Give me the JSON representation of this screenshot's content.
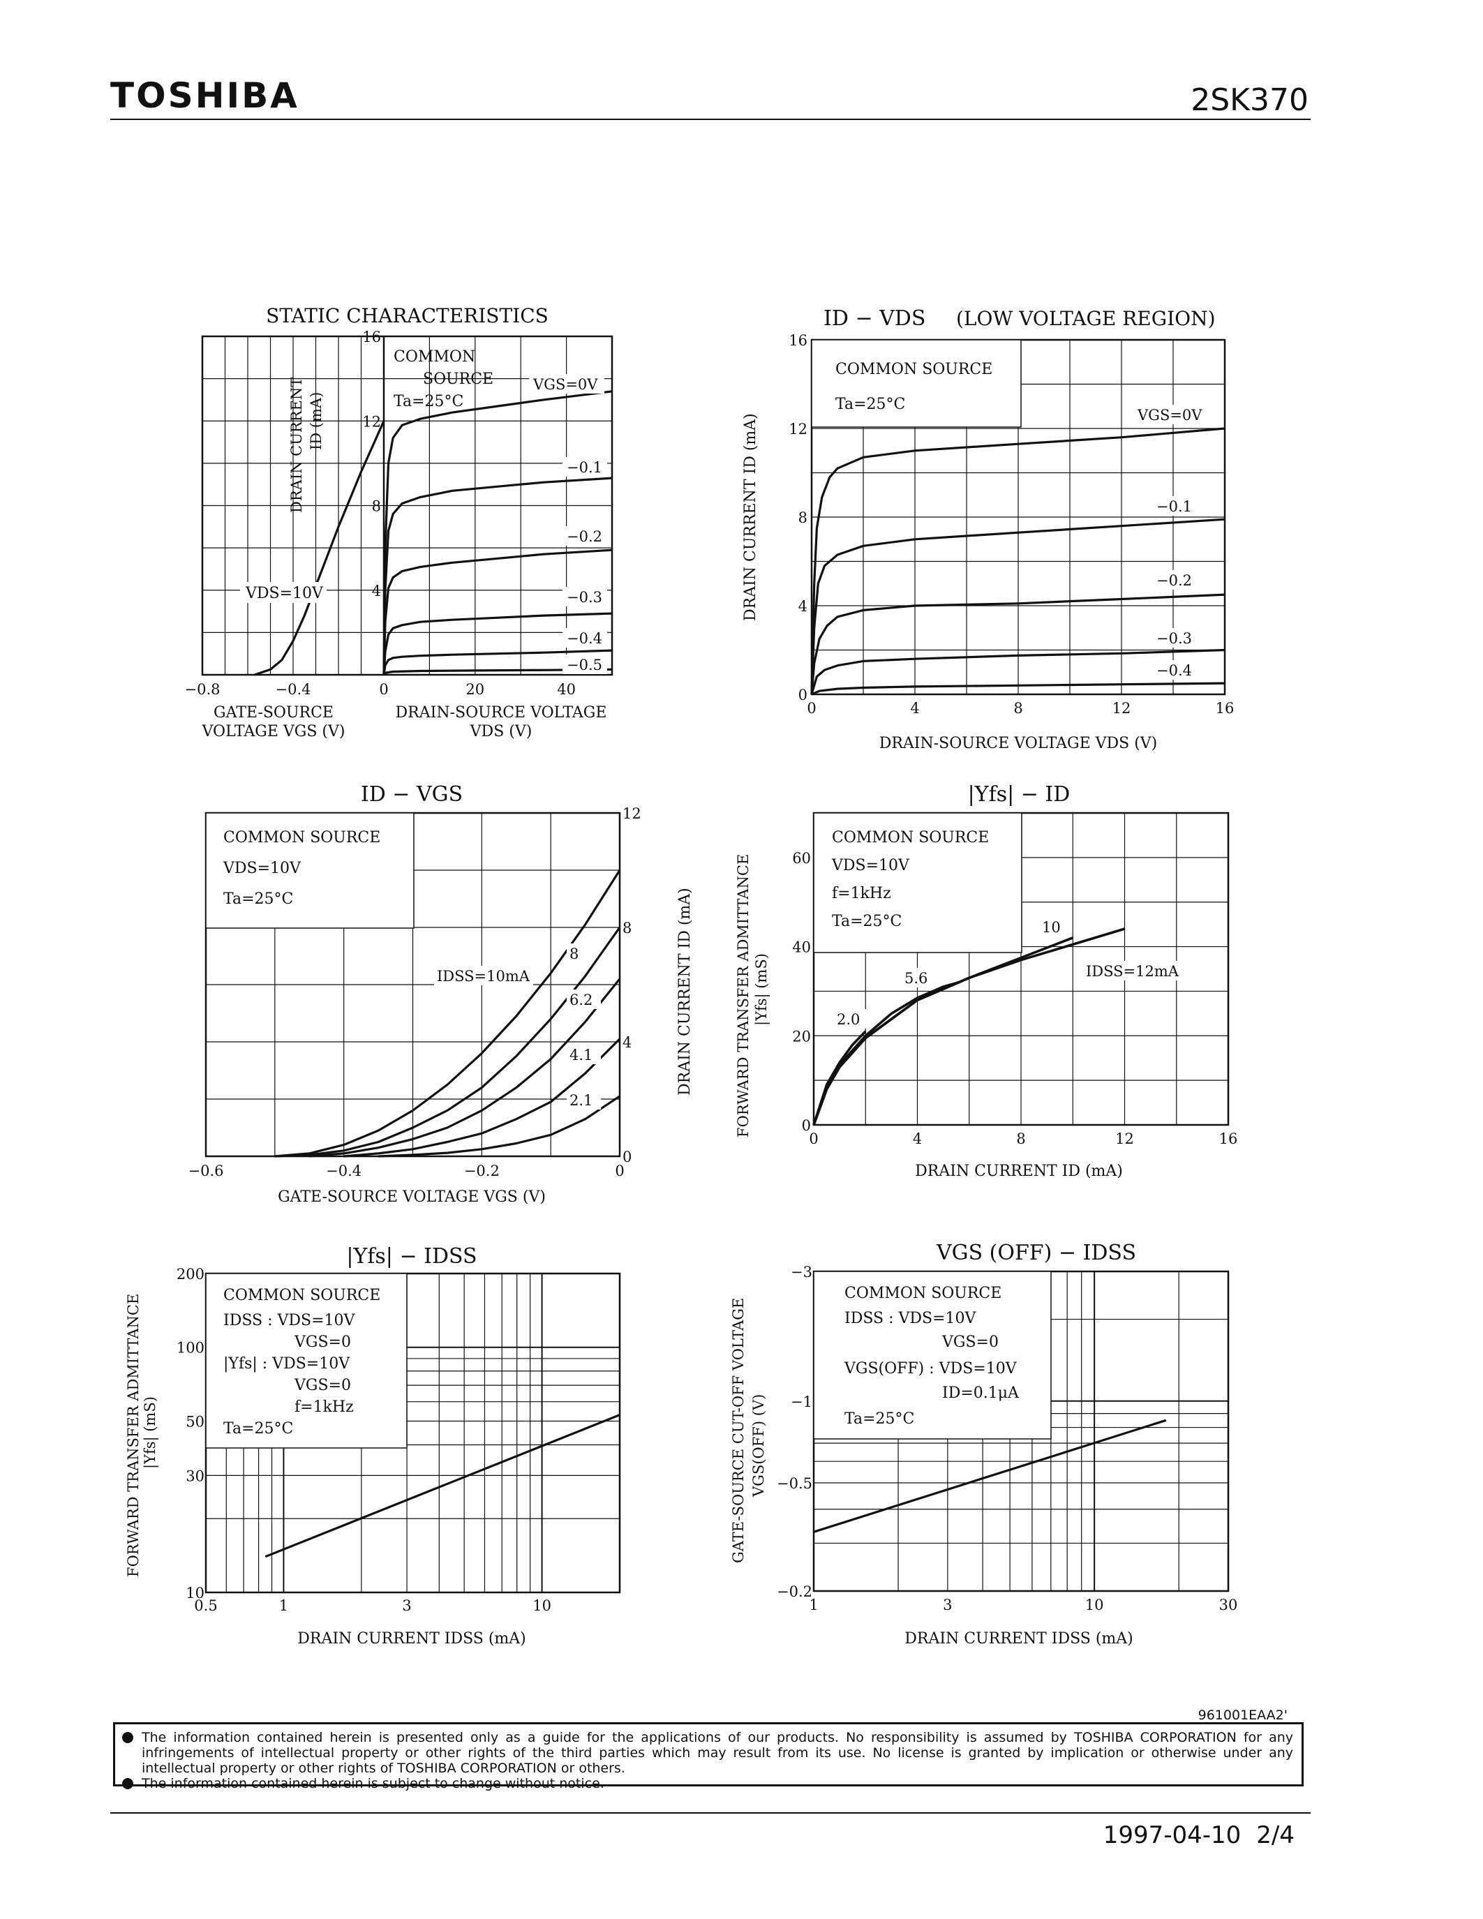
{
  "header": {
    "brand": "TOSHIBA",
    "part_number": "2SK370"
  },
  "chart_data": [
    {
      "id": "static",
      "type": "line",
      "title": "STATIC CHARACTERISTICS",
      "left_panel": {
        "xlabel": "GATE-SOURCE VOLTAGE VGS (V)",
        "xlim": [
          -0.8,
          0
        ],
        "xticks": [
          -0.8,
          -0.4,
          0
        ],
        "xtick_labels": [
          "−0.8",
          "−0.4",
          "0"
        ],
        "ylabel": "DRAIN CURRENT ID (mA)",
        "ylim": [
          0,
          16
        ],
        "yticks": [
          4,
          8,
          12,
          16
        ],
        "condition": "VDS=10V",
        "series": [
          {
            "name": "VDS=10V",
            "x": [
              -0.57,
              -0.5,
              -0.45,
              -0.4,
              -0.35,
              -0.3,
              -0.25,
              -0.2,
              -0.15,
              -0.1,
              -0.05,
              0
            ],
            "y": [
              0,
              0.25,
              0.7,
              1.6,
              2.8,
              4.2,
              5.6,
              7.0,
              8.3,
              9.6,
              10.8,
              12.0
            ]
          }
        ]
      },
      "right_panel": {
        "xlabel": "DRAIN-SOURCE VOLTAGE VDS (V)",
        "xlim": [
          0,
          50
        ],
        "xticks": [
          0,
          20,
          40
        ],
        "ylim": [
          0,
          16
        ],
        "annotation": [
          "COMMON",
          "SOURCE",
          "Ta=25°C"
        ],
        "series": [
          {
            "name": "VGS=0V",
            "label": "VGS=0V",
            "x": [
              0,
              0.3,
              1,
              2,
              4,
              8,
              15,
              25,
              35,
              50
            ],
            "y": [
              0,
              6,
              10,
              11.2,
              11.8,
              12.1,
              12.4,
              12.7,
              13.0,
              13.4
            ]
          },
          {
            "name": "−0.1",
            "label": "−0.1",
            "x": [
              0,
              0.3,
              1,
              2,
              4,
              8,
              15,
              25,
              35,
              50
            ],
            "y": [
              0,
              4,
              6.8,
              7.6,
              8.1,
              8.4,
              8.7,
              8.9,
              9.1,
              9.3
            ]
          },
          {
            "name": "−0.2",
            "label": "−0.2",
            "x": [
              0,
              0.3,
              1,
              2,
              4,
              8,
              15,
              25,
              35,
              50
            ],
            "y": [
              0,
              2.5,
              4.1,
              4.6,
              4.9,
              5.1,
              5.3,
              5.5,
              5.7,
              5.9
            ]
          },
          {
            "name": "−0.3",
            "label": "−0.3",
            "x": [
              0,
              0.3,
              1,
              2,
              4,
              8,
              15,
              25,
              35,
              50
            ],
            "y": [
              0,
              1.1,
              1.9,
              2.2,
              2.35,
              2.5,
              2.6,
              2.7,
              2.8,
              2.9
            ]
          },
          {
            "name": "−0.4",
            "label": "−0.4",
            "x": [
              0,
              0.3,
              1,
              2,
              4,
              8,
              15,
              25,
              35,
              50
            ],
            "y": [
              0,
              0.45,
              0.7,
              0.8,
              0.85,
              0.9,
              0.95,
              1.0,
              1.05,
              1.15
            ]
          },
          {
            "name": "−0.5",
            "label": "−0.5",
            "x": [
              0,
              0.5,
              2,
              8,
              20,
              35,
              50
            ],
            "y": [
              0,
              0.1,
              0.15,
              0.18,
              0.2,
              0.22,
              0.25
            ]
          }
        ]
      }
    },
    {
      "id": "id-vds",
      "type": "line",
      "title": "ID − VDS",
      "subtitle": "(LOW VOLTAGE REGION)",
      "xlabel": "DRAIN-SOURCE VOLTAGE VDS (V)",
      "ylabel": "DRAIN CURRENT ID (mA)",
      "xlim": [
        0,
        16
      ],
      "ylim": [
        0,
        16
      ],
      "xticks": [
        0,
        4,
        8,
        12,
        16
      ],
      "yticks": [
        0,
        4,
        8,
        12,
        16
      ],
      "annotation": [
        "COMMON SOURCE",
        "Ta=25°C"
      ],
      "series": [
        {
          "name": "VGS=0V",
          "label": "VGS=0V",
          "x": [
            0,
            0.1,
            0.2,
            0.4,
            0.7,
            1,
            2,
            4,
            8,
            12,
            16
          ],
          "y": [
            0,
            5,
            7.5,
            8.9,
            9.8,
            10.2,
            10.7,
            11.0,
            11.3,
            11.6,
            12.0
          ]
        },
        {
          "name": "−0.1",
          "label": "−0.1",
          "x": [
            0,
            0.1,
            0.25,
            0.5,
            1,
            2,
            4,
            8,
            12,
            16
          ],
          "y": [
            0,
            3,
            5,
            5.8,
            6.3,
            6.7,
            7.0,
            7.3,
            7.6,
            7.9
          ]
        },
        {
          "name": "−0.2",
          "label": "−0.2",
          "x": [
            0,
            0.1,
            0.3,
            0.6,
            1,
            2,
            4,
            8,
            12,
            16
          ],
          "y": [
            0,
            1.4,
            2.5,
            3.1,
            3.5,
            3.8,
            4.0,
            4.1,
            4.3,
            4.5
          ]
        },
        {
          "name": "−0.3",
          "label": "−0.3",
          "x": [
            0,
            0.2,
            0.5,
            1,
            2,
            4,
            8,
            12,
            16
          ],
          "y": [
            0,
            0.8,
            1.1,
            1.3,
            1.5,
            1.6,
            1.75,
            1.85,
            2.0
          ]
        },
        {
          "name": "−0.4",
          "label": "−0.4",
          "x": [
            0,
            0.3,
            1,
            2,
            4,
            8,
            12,
            16
          ],
          "y": [
            0,
            0.15,
            0.25,
            0.3,
            0.35,
            0.4,
            0.45,
            0.5
          ]
        }
      ]
    },
    {
      "id": "id-vgs",
      "type": "line",
      "title": "ID − VGS",
      "xlabel": "GATE-SOURCE VOLTAGE VGS (V)",
      "ylabel": "DRAIN CURRENT ID (mA)",
      "xlim": [
        -0.6,
        0
      ],
      "ylim": [
        0,
        12
      ],
      "xticks": [
        -0.6,
        -0.4,
        -0.2,
        0
      ],
      "xtick_labels": [
        "−0.6",
        "−0.4",
        "−0.2",
        "0"
      ],
      "yticks": [
        0,
        4,
        8,
        12
      ],
      "annotation": [
        "COMMON SOURCE",
        "VDS=10V",
        "Ta=25°C"
      ],
      "series": [
        {
          "name": "IDSS=10mA",
          "label": "IDSS=10mA",
          "x": [
            -0.5,
            -0.45,
            -0.4,
            -0.35,
            -0.3,
            -0.25,
            -0.2,
            -0.15,
            -0.1,
            -0.05,
            0
          ],
          "y": [
            0,
            0.1,
            0.4,
            0.9,
            1.6,
            2.5,
            3.6,
            4.9,
            6.4,
            8.1,
            10.0
          ]
        },
        {
          "name": "8",
          "label": "8",
          "x": [
            -0.5,
            -0.45,
            -0.4,
            -0.35,
            -0.3,
            -0.25,
            -0.2,
            -0.15,
            -0.1,
            -0.05,
            0
          ],
          "y": [
            0,
            0.05,
            0.2,
            0.5,
            1.0,
            1.6,
            2.4,
            3.5,
            4.8,
            6.3,
            8.0
          ]
        },
        {
          "name": "6.2",
          "label": "6.2",
          "x": [
            -0.45,
            -0.4,
            -0.35,
            -0.3,
            -0.25,
            -0.2,
            -0.15,
            -0.1,
            -0.05,
            0
          ],
          "y": [
            0,
            0.1,
            0.3,
            0.6,
            1.0,
            1.6,
            2.4,
            3.4,
            4.7,
            6.2
          ]
        },
        {
          "name": "4.1",
          "label": "4.1",
          "x": [
            -0.4,
            -0.35,
            -0.3,
            -0.25,
            -0.2,
            -0.15,
            -0.1,
            -0.05,
            0
          ],
          "y": [
            0,
            0.1,
            0.25,
            0.5,
            0.8,
            1.3,
            1.9,
            2.9,
            4.1
          ]
        },
        {
          "name": "2.1",
          "label": "2.1",
          "x": [
            -0.35,
            -0.3,
            -0.25,
            -0.2,
            -0.15,
            -0.1,
            -0.05,
            0
          ],
          "y": [
            0,
            0.05,
            0.12,
            0.25,
            0.45,
            0.75,
            1.3,
            2.1
          ]
        }
      ]
    },
    {
      "id": "yfs-id",
      "type": "line",
      "title": "|Yfs| − ID",
      "xlabel": "DRAIN CURRENT ID (mA)",
      "ylabel": "FORWARD TRANSFER ADMITTANCE |Yfs| (mS)",
      "xlim": [
        0,
        16
      ],
      "ylim": [
        0,
        70
      ],
      "xticks": [
        0,
        4,
        8,
        12,
        16
      ],
      "yticks": [
        0,
        20,
        40,
        60
      ],
      "annotation": [
        "COMMON SOURCE",
        "VDS=10V",
        "f=1kHz",
        "Ta=25°C"
      ],
      "series": [
        {
          "name": "2.0",
          "label": "2.0",
          "x": [
            0,
            0.5,
            1,
            1.5,
            2
          ],
          "y": [
            0,
            9,
            14,
            18,
            21
          ]
        },
        {
          "name": "5.6",
          "label": "5.6",
          "x": [
            0,
            0.5,
            1,
            2,
            3,
            4,
            5,
            5.6
          ],
          "y": [
            0,
            8.5,
            13.5,
            20,
            25,
            28.5,
            31,
            32
          ]
        },
        {
          "name": "10",
          "label": "10",
          "x": [
            0,
            0.5,
            1,
            2,
            4,
            6,
            8,
            10
          ],
          "y": [
            0,
            8,
            13,
            19.5,
            28,
            33,
            37.5,
            42
          ]
        },
        {
          "name": "IDSS=12mA",
          "label": "IDSS=12mA",
          "x": [
            0,
            0.5,
            1,
            2,
            4,
            6,
            8,
            10,
            12
          ],
          "y": [
            0,
            8,
            13,
            19.5,
            28,
            33,
            37,
            40.5,
            44
          ]
        }
      ]
    },
    {
      "id": "yfs-idss",
      "type": "line",
      "scale": "log-log",
      "title": "|Yfs| − IDSS",
      "xlabel": "DRAIN CURRENT IDSS (mA)",
      "ylabel": "FORWARD TRANSFER ADMITTANCE |Yfs| (mS)",
      "xlim": [
        0.5,
        20
      ],
      "ylim": [
        10,
        200
      ],
      "xticks": [
        0.5,
        1,
        3,
        10
      ],
      "yticks": [
        10,
        30,
        50,
        100,
        200
      ],
      "annotation": [
        "COMMON SOURCE",
        "IDSS : VDS=10V",
        "VGS=0",
        "|Yfs| : VDS=10V",
        "VGS=0",
        "f=1kHz",
        "Ta=25°C"
      ],
      "series": [
        {
          "name": "Yfs",
          "x": [
            0.85,
            20
          ],
          "y": [
            14,
            53
          ]
        }
      ]
    },
    {
      "id": "vgsoff-idss",
      "type": "line",
      "scale": "log-log",
      "title": "VGS (OFF) − IDSS",
      "xlabel": "DRAIN CURRENT IDSS (mA)",
      "ylabel": "GATE-SOURCE CUT-OFF VOLTAGE VGS(OFF) (V)",
      "xlim": [
        1,
        30
      ],
      "ylim": [
        -0.2,
        -3
      ],
      "xticks": [
        1,
        3,
        10,
        30
      ],
      "yticks": [
        -0.2,
        -0.5,
        -1,
        -3
      ],
      "ytick_labels": [
        "−0.2",
        "−0.5",
        "−1",
        "−3"
      ],
      "annotation": [
        "COMMON SOURCE",
        "IDSS : VDS=10V",
        "VGS=0",
        "VGS(OFF) : VDS=10V",
        "ID=0.1μA",
        "Ta=25°C"
      ],
      "series": [
        {
          "name": "VGS(OFF)",
          "x": [
            1,
            18
          ],
          "y": [
            -0.33,
            -0.85
          ]
        }
      ]
    }
  ],
  "footer": {
    "doc_ref": "961001EAA2'",
    "notice_1": "The information contained herein is presented only as a guide for the applications of our products. No responsibility is assumed by TOSHIBA CORPORATION for any infringements of intellectual property or other rights of the third parties which may result from its use. No license is granted by implication or otherwise under any intellectual property or other rights of TOSHIBA CORPORATION or others.",
    "notice_2": "The information contained herein is subject to change without notice.",
    "date": "1997-04-10",
    "page": "2/4"
  }
}
